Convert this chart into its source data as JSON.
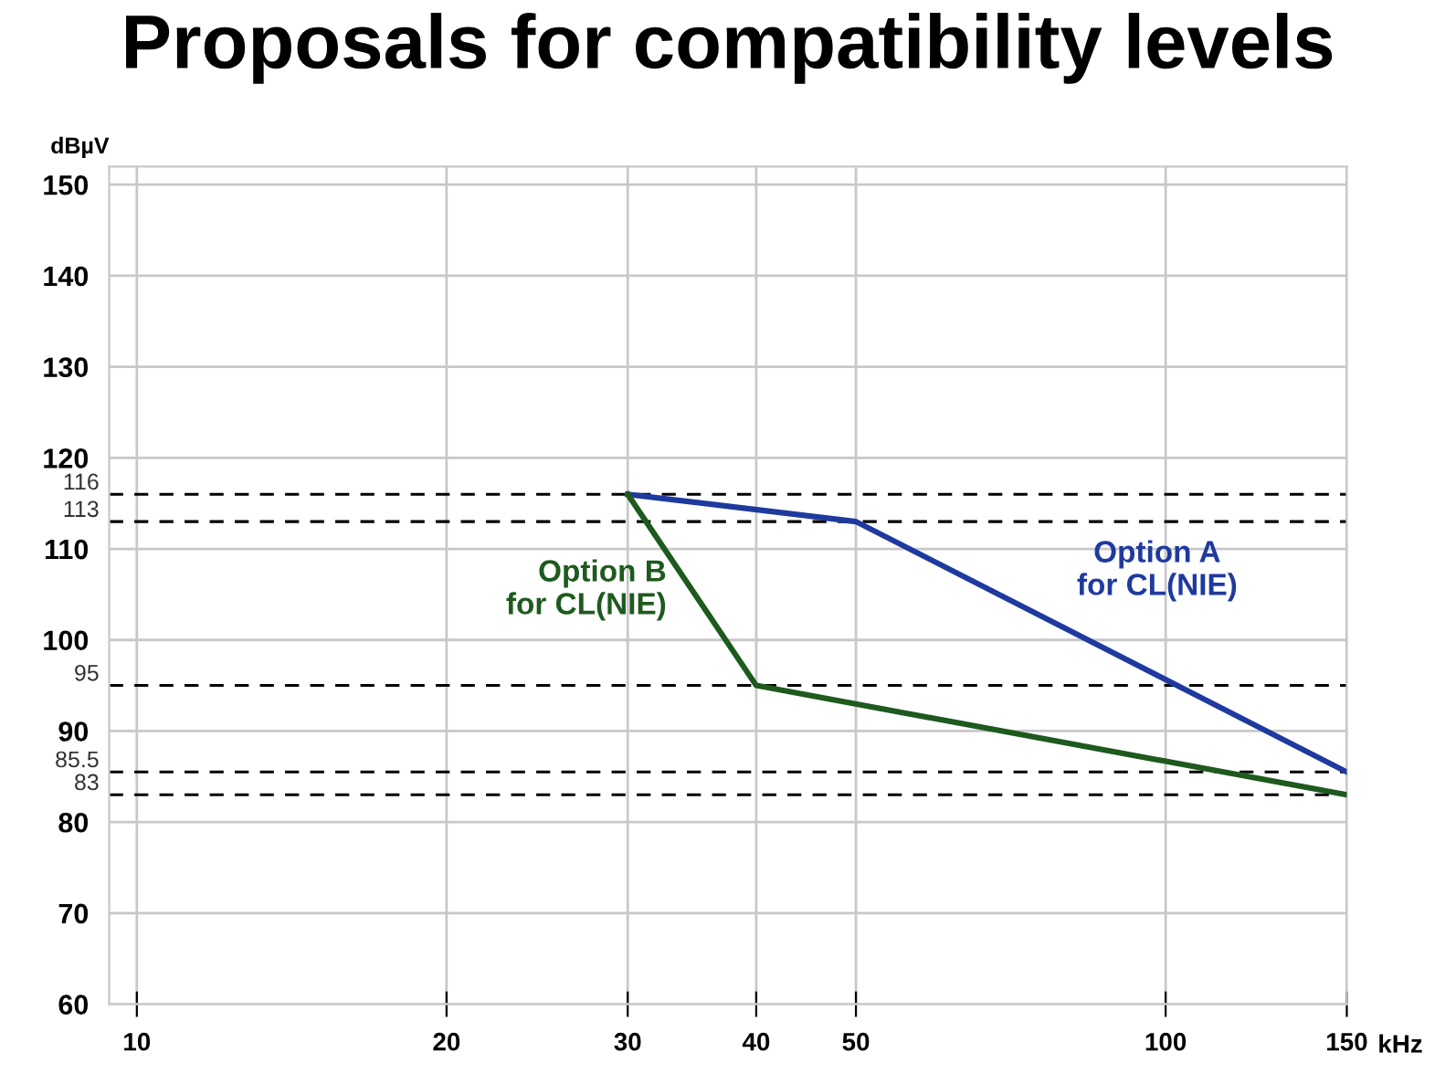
{
  "chart_data": {
    "type": "line",
    "title": "Proposals for compatibility levels",
    "xlabel": "kHz",
    "ylabel": "dBµV",
    "log": "x",
    "xlim": [
      9.4,
      150
    ],
    "xticks": [
      10,
      20,
      30,
      40,
      50,
      100,
      150
    ],
    "ylim": [
      60,
      152
    ],
    "yticks": [
      60,
      70,
      80,
      90,
      100,
      110,
      120,
      130,
      140,
      150
    ],
    "grid": true,
    "legend": false,
    "marker": "none",
    "line_style": "solid",
    "series": [
      {
        "name": "Option A\nfor CL(NIE)",
        "color": "#1f3a9e",
        "x": [
          30,
          50,
          150
        ],
        "values": [
          116,
          113,
          85.5
        ]
      },
      {
        "name": "Option B\nfor CL(NIE)",
        "color": "#1e5a1e",
        "x": [
          30,
          40,
          150
        ],
        "values": [
          116,
          95,
          83
        ]
      }
    ],
    "ref_lines": [
      {
        "axis": "y",
        "value": 116,
        "label": "116",
        "color": "#000000",
        "line_style": "dashed"
      },
      {
        "axis": "y",
        "value": 113,
        "label": "113",
        "color": "#000000",
        "line_style": "dashed"
      },
      {
        "axis": "y",
        "value": 95,
        "label": "95",
        "color": "#000000",
        "line_style": "dashed"
      },
      {
        "axis": "y",
        "value": 85.5,
        "label": "85.5",
        "color": "#000000",
        "line_style": "dashed"
      },
      {
        "axis": "y",
        "value": 83,
        "label": "83",
        "color": "#000000",
        "line_style": "dashed"
      }
    ]
  }
}
